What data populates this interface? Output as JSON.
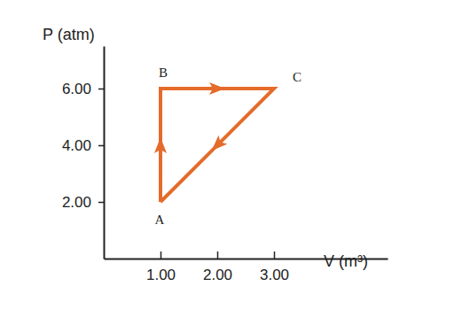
{
  "chart_data": {
    "type": "line",
    "x_label": "V (m³)",
    "y_label": "P (atm)",
    "x": [
      1,
      1,
      3,
      1
    ],
    "series": [
      {
        "color": "#e56b2a",
        "values": [
          2,
          6,
          6,
          2
        ]
      }
    ],
    "marker": "arrow",
    "xlim": [
      0,
      5
    ],
    "ylim": [
      0,
      7.5
    ],
    "xticks": [
      {
        "value": 1,
        "label": "1.00"
      },
      {
        "value": 2,
        "label": "2.00"
      },
      {
        "value": 3,
        "label": "3.00"
      }
    ],
    "yticks": [
      {
        "value": 2,
        "label": "2.00"
      },
      {
        "value": 4,
        "label": "4.00"
      },
      {
        "value": 6,
        "label": "6.00"
      }
    ],
    "annotations": [
      {
        "text": "A",
        "x": 1,
        "y": 2
      },
      {
        "text": "B",
        "x": 1,
        "y": 6
      },
      {
        "text": "C",
        "x": 3,
        "y": 6
      }
    ]
  }
}
